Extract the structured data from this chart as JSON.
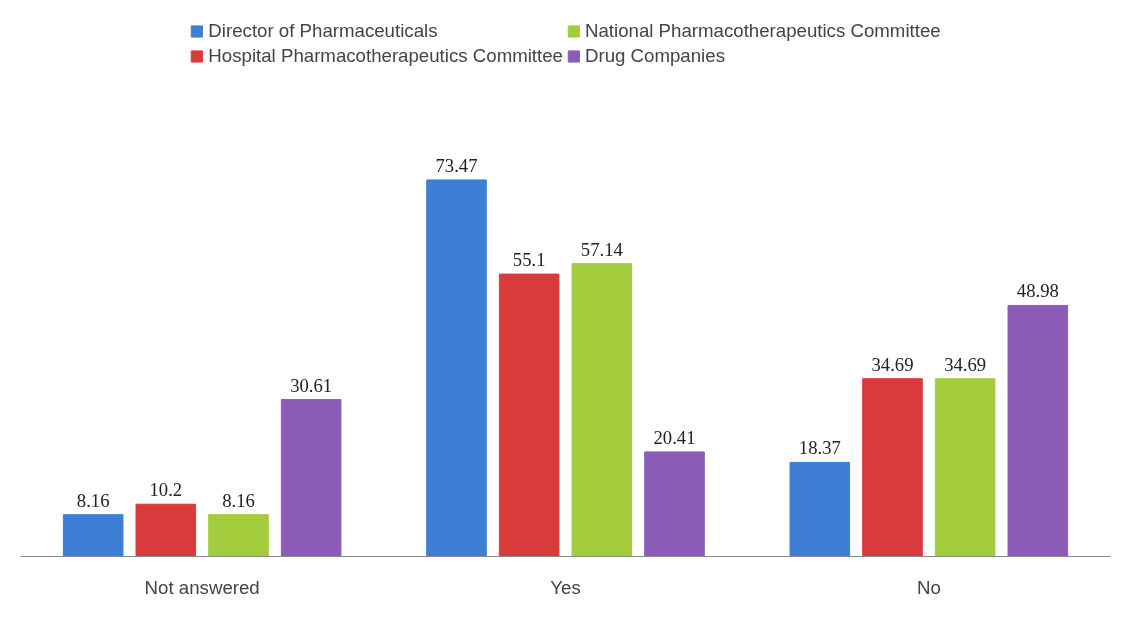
{
  "chart_data": {
    "type": "bar",
    "categories": [
      "Not answered",
      "Yes",
      "No"
    ],
    "series": [
      {
        "name": "Director of Pharmaceuticals",
        "color": "#3d7fd6",
        "values": [
          8.16,
          73.47,
          18.37
        ]
      },
      {
        "name": "Hospital Pharmacotherapeutics Committee",
        "color": "#d93a3a",
        "values": [
          10.2,
          55.1,
          34.69
        ]
      },
      {
        "name": "National Pharmacotherapeutics Committee",
        "color": "#a3cc3c",
        "values": [
          8.16,
          57.14,
          34.69
        ]
      },
      {
        "name": "Drug Companies",
        "color": "#8a5cb8",
        "values": [
          30.61,
          20.41,
          48.98
        ]
      }
    ],
    "data_labels": true,
    "legend": "top",
    "tick_labels": "x"
  }
}
